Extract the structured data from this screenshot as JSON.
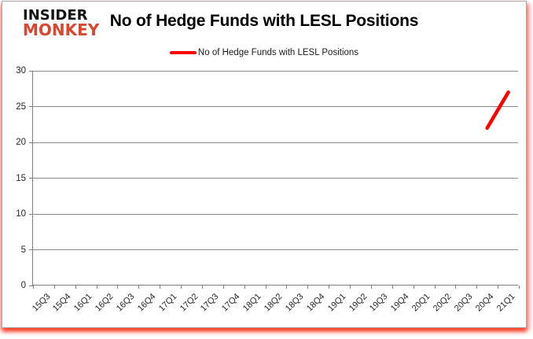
{
  "brand": {
    "line1": "INSIDER",
    "line2": "MONKEY",
    "line1_color": "#121212",
    "line2_color": "#d9472e"
  },
  "chart_data": {
    "type": "line",
    "title": "No of Hedge Funds with LESL Positions",
    "legend": [
      {
        "label": "No of Hedge Funds with LESL Positions",
        "color": "#ff0000"
      }
    ],
    "legend_position": "top-center",
    "categories": [
      "15Q3",
      "15Q4",
      "16Q1",
      "16Q2",
      "16Q3",
      "16Q4",
      "17Q1",
      "17Q2",
      "17Q3",
      "17Q4",
      "18Q1",
      "18Q2",
      "18Q3",
      "18Q4",
      "19Q1",
      "19Q2",
      "19Q3",
      "19Q4",
      "20Q1",
      "20Q2",
      "20Q3",
      "20Q4",
      "21Q1"
    ],
    "series": [
      {
        "name": "No of Hedge Funds with LESL Positions",
        "color": "#ff0000",
        "values": [
          null,
          null,
          null,
          null,
          null,
          null,
          null,
          null,
          null,
          null,
          null,
          null,
          null,
          null,
          null,
          null,
          null,
          null,
          null,
          null,
          null,
          22,
          27
        ]
      }
    ],
    "xlabel": "",
    "ylabel": "",
    "ylim": [
      0,
      30
    ],
    "y_ticks": [
      0,
      5,
      10,
      15,
      20,
      25,
      30
    ],
    "grid": true
  },
  "colors": {
    "gridline": "#8a8a8a",
    "axis": "#7f7f7f",
    "tick_text": "#262626",
    "series_line": "#ff0000"
  }
}
